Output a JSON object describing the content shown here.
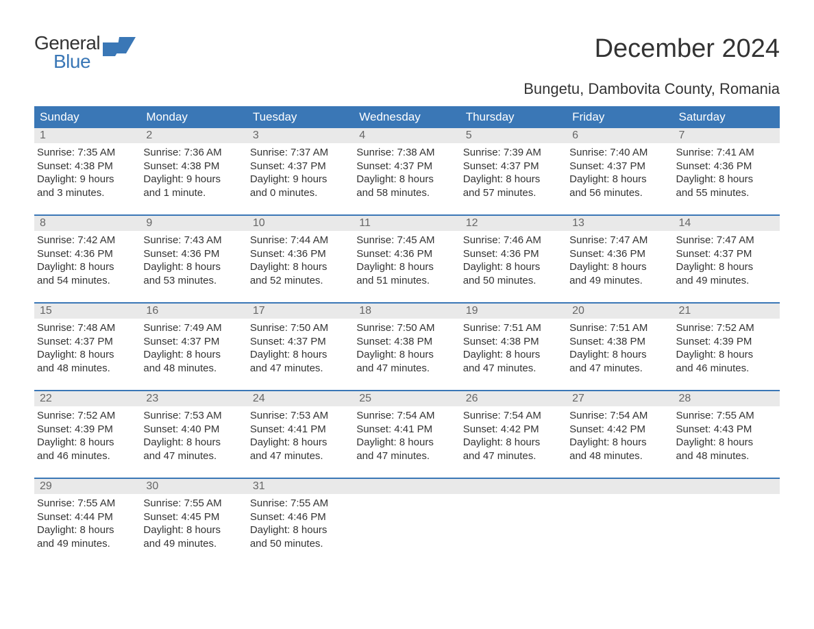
{
  "logo": {
    "line1": "General",
    "line2": "Blue",
    "flag_color": "#3a77b6"
  },
  "title": "December 2024",
  "location": "Bungetu, Dambovita County, Romania",
  "colors": {
    "header_bg": "#3a77b6",
    "header_text": "#ffffff",
    "daynum_bg": "#e9e9e9",
    "daynum_text": "#666666",
    "body_text": "#333333",
    "rule": "#3a77b6",
    "page_bg": "#ffffff"
  },
  "typography": {
    "title_fontsize": 38,
    "location_fontsize": 22,
    "header_fontsize": 17,
    "daynum_fontsize": 16,
    "body_fontsize": 15,
    "logo_fontsize": 28
  },
  "layout": {
    "columns": 7,
    "rows": 5,
    "cell_min_height": 126
  },
  "day_headers": [
    "Sunday",
    "Monday",
    "Tuesday",
    "Wednesday",
    "Thursday",
    "Friday",
    "Saturday"
  ],
  "weeks": [
    [
      {
        "n": "1",
        "sunrise": "Sunrise: 7:35 AM",
        "sunset": "Sunset: 4:38 PM",
        "d1": "Daylight: 9 hours",
        "d2": "and 3 minutes."
      },
      {
        "n": "2",
        "sunrise": "Sunrise: 7:36 AM",
        "sunset": "Sunset: 4:38 PM",
        "d1": "Daylight: 9 hours",
        "d2": "and 1 minute."
      },
      {
        "n": "3",
        "sunrise": "Sunrise: 7:37 AM",
        "sunset": "Sunset: 4:37 PM",
        "d1": "Daylight: 9 hours",
        "d2": "and 0 minutes."
      },
      {
        "n": "4",
        "sunrise": "Sunrise: 7:38 AM",
        "sunset": "Sunset: 4:37 PM",
        "d1": "Daylight: 8 hours",
        "d2": "and 58 minutes."
      },
      {
        "n": "5",
        "sunrise": "Sunrise: 7:39 AM",
        "sunset": "Sunset: 4:37 PM",
        "d1": "Daylight: 8 hours",
        "d2": "and 57 minutes."
      },
      {
        "n": "6",
        "sunrise": "Sunrise: 7:40 AM",
        "sunset": "Sunset: 4:37 PM",
        "d1": "Daylight: 8 hours",
        "d2": "and 56 minutes."
      },
      {
        "n": "7",
        "sunrise": "Sunrise: 7:41 AM",
        "sunset": "Sunset: 4:36 PM",
        "d1": "Daylight: 8 hours",
        "d2": "and 55 minutes."
      }
    ],
    [
      {
        "n": "8",
        "sunrise": "Sunrise: 7:42 AM",
        "sunset": "Sunset: 4:36 PM",
        "d1": "Daylight: 8 hours",
        "d2": "and 54 minutes."
      },
      {
        "n": "9",
        "sunrise": "Sunrise: 7:43 AM",
        "sunset": "Sunset: 4:36 PM",
        "d1": "Daylight: 8 hours",
        "d2": "and 53 minutes."
      },
      {
        "n": "10",
        "sunrise": "Sunrise: 7:44 AM",
        "sunset": "Sunset: 4:36 PM",
        "d1": "Daylight: 8 hours",
        "d2": "and 52 minutes."
      },
      {
        "n": "11",
        "sunrise": "Sunrise: 7:45 AM",
        "sunset": "Sunset: 4:36 PM",
        "d1": "Daylight: 8 hours",
        "d2": "and 51 minutes."
      },
      {
        "n": "12",
        "sunrise": "Sunrise: 7:46 AM",
        "sunset": "Sunset: 4:36 PM",
        "d1": "Daylight: 8 hours",
        "d2": "and 50 minutes."
      },
      {
        "n": "13",
        "sunrise": "Sunrise: 7:47 AM",
        "sunset": "Sunset: 4:36 PM",
        "d1": "Daylight: 8 hours",
        "d2": "and 49 minutes."
      },
      {
        "n": "14",
        "sunrise": "Sunrise: 7:47 AM",
        "sunset": "Sunset: 4:37 PM",
        "d1": "Daylight: 8 hours",
        "d2": "and 49 minutes."
      }
    ],
    [
      {
        "n": "15",
        "sunrise": "Sunrise: 7:48 AM",
        "sunset": "Sunset: 4:37 PM",
        "d1": "Daylight: 8 hours",
        "d2": "and 48 minutes."
      },
      {
        "n": "16",
        "sunrise": "Sunrise: 7:49 AM",
        "sunset": "Sunset: 4:37 PM",
        "d1": "Daylight: 8 hours",
        "d2": "and 48 minutes."
      },
      {
        "n": "17",
        "sunrise": "Sunrise: 7:50 AM",
        "sunset": "Sunset: 4:37 PM",
        "d1": "Daylight: 8 hours",
        "d2": "and 47 minutes."
      },
      {
        "n": "18",
        "sunrise": "Sunrise: 7:50 AM",
        "sunset": "Sunset: 4:38 PM",
        "d1": "Daylight: 8 hours",
        "d2": "and 47 minutes."
      },
      {
        "n": "19",
        "sunrise": "Sunrise: 7:51 AM",
        "sunset": "Sunset: 4:38 PM",
        "d1": "Daylight: 8 hours",
        "d2": "and 47 minutes."
      },
      {
        "n": "20",
        "sunrise": "Sunrise: 7:51 AM",
        "sunset": "Sunset: 4:38 PM",
        "d1": "Daylight: 8 hours",
        "d2": "and 47 minutes."
      },
      {
        "n": "21",
        "sunrise": "Sunrise: 7:52 AM",
        "sunset": "Sunset: 4:39 PM",
        "d1": "Daylight: 8 hours",
        "d2": "and 46 minutes."
      }
    ],
    [
      {
        "n": "22",
        "sunrise": "Sunrise: 7:52 AM",
        "sunset": "Sunset: 4:39 PM",
        "d1": "Daylight: 8 hours",
        "d2": "and 46 minutes."
      },
      {
        "n": "23",
        "sunrise": "Sunrise: 7:53 AM",
        "sunset": "Sunset: 4:40 PM",
        "d1": "Daylight: 8 hours",
        "d2": "and 47 minutes."
      },
      {
        "n": "24",
        "sunrise": "Sunrise: 7:53 AM",
        "sunset": "Sunset: 4:41 PM",
        "d1": "Daylight: 8 hours",
        "d2": "and 47 minutes."
      },
      {
        "n": "25",
        "sunrise": "Sunrise: 7:54 AM",
        "sunset": "Sunset: 4:41 PM",
        "d1": "Daylight: 8 hours",
        "d2": "and 47 minutes."
      },
      {
        "n": "26",
        "sunrise": "Sunrise: 7:54 AM",
        "sunset": "Sunset: 4:42 PM",
        "d1": "Daylight: 8 hours",
        "d2": "and 47 minutes."
      },
      {
        "n": "27",
        "sunrise": "Sunrise: 7:54 AM",
        "sunset": "Sunset: 4:42 PM",
        "d1": "Daylight: 8 hours",
        "d2": "and 48 minutes."
      },
      {
        "n": "28",
        "sunrise": "Sunrise: 7:55 AM",
        "sunset": "Sunset: 4:43 PM",
        "d1": "Daylight: 8 hours",
        "d2": "and 48 minutes."
      }
    ],
    [
      {
        "n": "29",
        "sunrise": "Sunrise: 7:55 AM",
        "sunset": "Sunset: 4:44 PM",
        "d1": "Daylight: 8 hours",
        "d2": "and 49 minutes."
      },
      {
        "n": "30",
        "sunrise": "Sunrise: 7:55 AM",
        "sunset": "Sunset: 4:45 PM",
        "d1": "Daylight: 8 hours",
        "d2": "and 49 minutes."
      },
      {
        "n": "31",
        "sunrise": "Sunrise: 7:55 AM",
        "sunset": "Sunset: 4:46 PM",
        "d1": "Daylight: 8 hours",
        "d2": "and 50 minutes."
      },
      {
        "empty": true
      },
      {
        "empty": true
      },
      {
        "empty": true
      },
      {
        "empty": true
      }
    ]
  ]
}
